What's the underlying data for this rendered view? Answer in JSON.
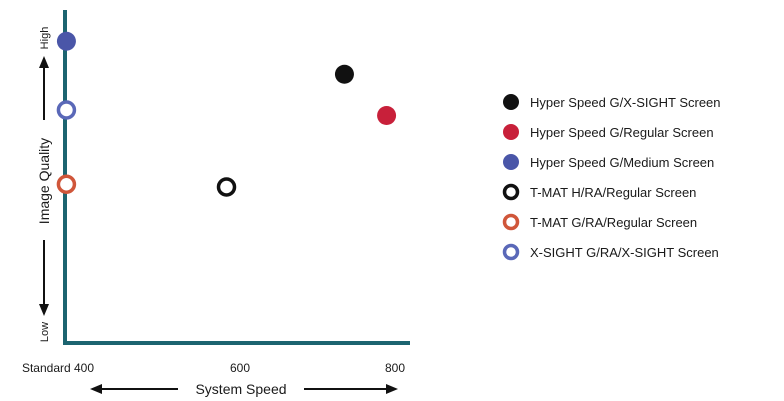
{
  "chart_data": {
    "type": "scatter",
    "title": "",
    "xlabel": "System Speed",
    "ylabel": "Image Quality",
    "xlim": [
      400,
      800
    ],
    "ylim": [
      0,
      10
    ],
    "x_ticks": [
      {
        "value": 400,
        "label": "Standard 400"
      },
      {
        "value": 600,
        "label": "600"
      },
      {
        "value": 800,
        "label": "800"
      }
    ],
    "y_low_label": "Low",
    "y_high_label": "High",
    "grid": false,
    "legend_position": "right",
    "series": [
      {
        "name": "Hyper Speed G/X-SIGHT Screen",
        "marker": "filled",
        "color": "#111111",
        "points": [
          {
            "x": 740,
            "y": 9.3
          }
        ]
      },
      {
        "name": "Hyper Speed G/Regular Screen",
        "marker": "filled",
        "color": "#c8203a",
        "points": [
          {
            "x": 790,
            "y": 7.8
          }
        ]
      },
      {
        "name": "Hyper Speed G/Medium Screen",
        "marker": "filled",
        "color": "#4a56a8",
        "points": [
          {
            "x": 410,
            "y": 10.5
          }
        ]
      },
      {
        "name": "T-MAT H/RA/Regular Screen",
        "marker": "open",
        "color": "#111111",
        "points": [
          {
            "x": 600,
            "y": 5.2
          }
        ]
      },
      {
        "name": "T-MAT G/RA/Regular Screen",
        "marker": "open",
        "color": "#d0563a",
        "points": [
          {
            "x": 410,
            "y": 5.3
          }
        ]
      },
      {
        "name": "X-SIGHT G/RA/X-SIGHT Screen",
        "marker": "open",
        "color": "#5a68b8",
        "points": [
          {
            "x": 410,
            "y": 8.0
          }
        ]
      }
    ]
  }
}
